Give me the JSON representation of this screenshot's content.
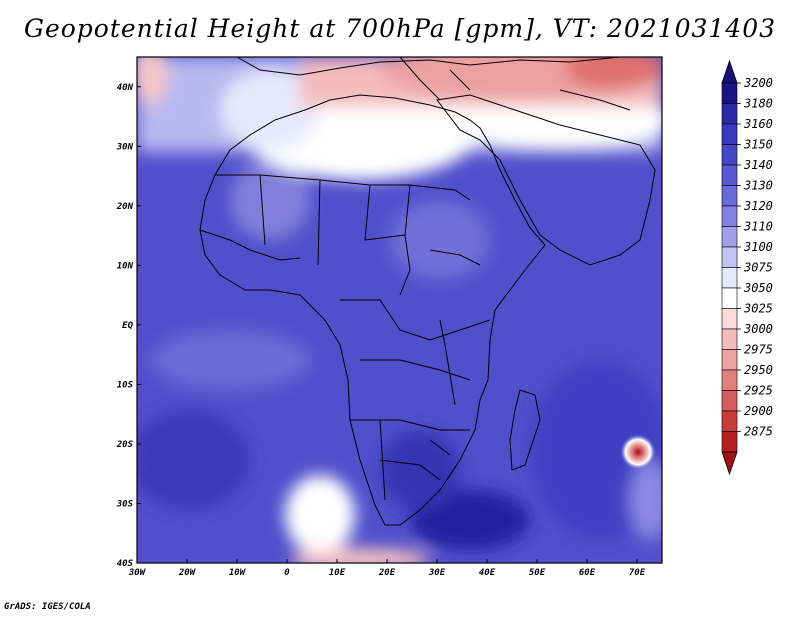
{
  "title": "Geopotential Height at 700hPa [gpm], VT: 2021031403",
  "credit": "GrADS: IGES/COLA",
  "map": {
    "lon_range": [
      -30,
      75
    ],
    "lat_range": [
      -40,
      45
    ],
    "lon_ticks": [
      "30W",
      "20W",
      "10W",
      "0",
      "10E",
      "20E",
      "30E",
      "40E",
      "50E",
      "60E",
      "70E"
    ],
    "lat_ticks": [
      "40N",
      "30N",
      "20N",
      "10N",
      "EQ",
      "10S",
      "20S",
      "30S",
      "40S"
    ]
  },
  "colorbar": {
    "levels": [
      "3200",
      "3180",
      "3160",
      "3150",
      "3140",
      "3130",
      "3120",
      "3110",
      "3100",
      "3075",
      "3050",
      "3025",
      "3000",
      "2975",
      "2950",
      "2925",
      "2900",
      "2875"
    ],
    "colors": [
      "#1a1485",
      "#2a2aa8",
      "#3838c0",
      "#4646cc",
      "#5858d4",
      "#6a6adc",
      "#8282e4",
      "#a0a0ec",
      "#c4c4f4",
      "#e8e8fc",
      "#ffffff",
      "#fadada",
      "#f4bcbc",
      "#eca0a0",
      "#e28080",
      "#d65e5e",
      "#c83c3c",
      "#b42020",
      "#a01010"
    ],
    "top_arrow_color": "#1a0f7a",
    "bottom_arrow_color": "#a01010"
  }
}
